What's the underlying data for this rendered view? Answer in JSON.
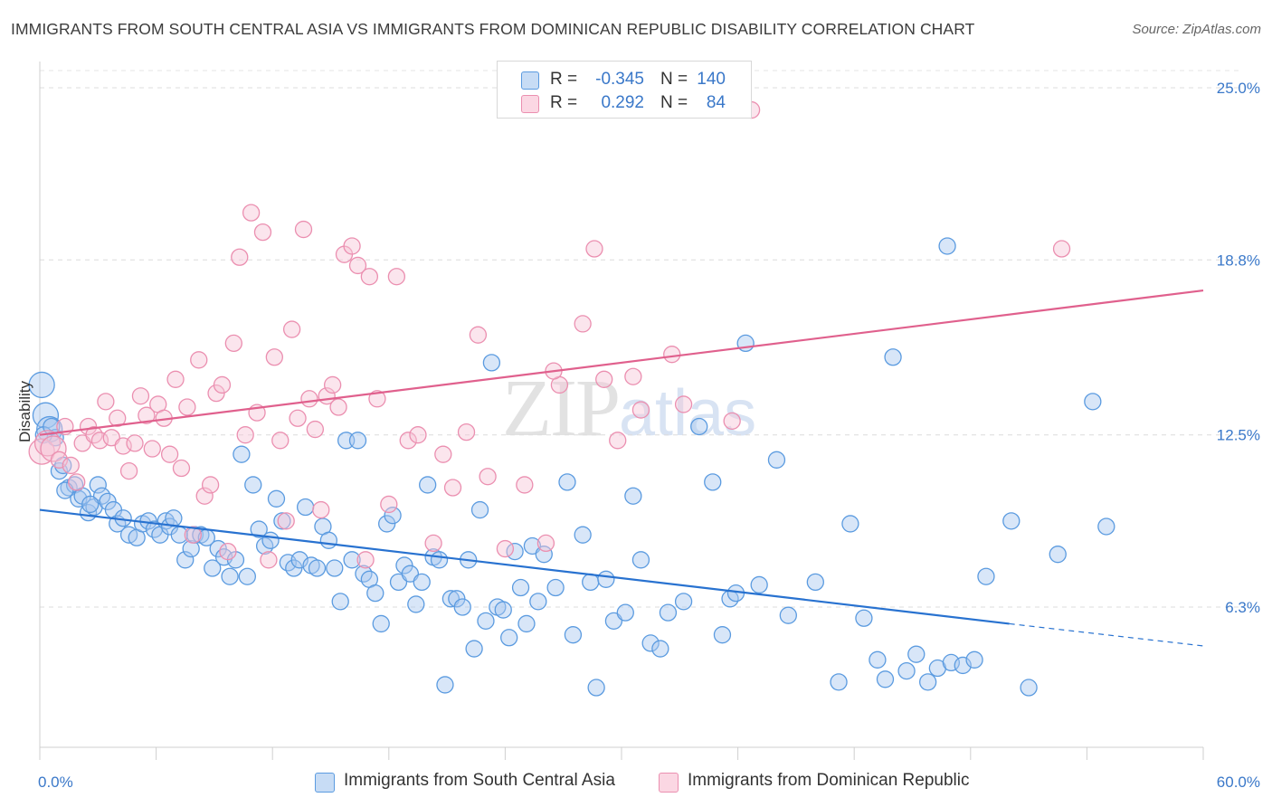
{
  "header": {
    "title": "IMMIGRANTS FROM SOUTH CENTRAL ASIA VS IMMIGRANTS FROM DOMINICAN REPUBLIC DISABILITY CORRELATION CHART",
    "source": "Source: ZipAtlas.com"
  },
  "watermark": {
    "zip": "ZIP",
    "atlas": "atlas"
  },
  "legend": {
    "rows": [
      {
        "r_label": "R =",
        "r_value": "-0.345",
        "n_label": "N =",
        "n_value": "140"
      },
      {
        "r_label": "R =",
        "r_value": "0.292",
        "n_label": "N =",
        "n_value": "84"
      }
    ]
  },
  "colors": {
    "blue": "#5b9be0",
    "blue_fill": "#a9c8f0",
    "blue_line": "#2872d0",
    "pink": "#eb8fb0",
    "pink_fill": "#f6c6d7",
    "pink_line": "#e0608d",
    "axis_label": "#3a78c9"
  },
  "chart_data": {
    "type": "scatter",
    "xlabel": "",
    "ylabel": "Disability",
    "xlim": [
      0,
      60
    ],
    "ylim": [
      0,
      26.5
    ],
    "x_ticks": [
      "0.0%",
      "60.0%"
    ],
    "y_ticks": [
      {
        "value": 6.3,
        "label": "6.3%"
      },
      {
        "value": 12.5,
        "label": "12.5%"
      },
      {
        "value": 18.8,
        "label": "18.8%"
      },
      {
        "value": 25.0,
        "label": "25.0%"
      }
    ],
    "grid": "horizontal dashed",
    "series": [
      {
        "name": "Immigrants from South Central Asia",
        "color": "blue",
        "trend": {
          "x0": 0,
          "y0": 9.8,
          "x1": 50,
          "y1": 5.7,
          "dash_to_x": 60,
          "dash_to_y": 4.9
        },
        "points": [
          [
            0.1,
            14.3
          ],
          [
            0.3,
            13.2
          ],
          [
            0.5,
            12.7
          ],
          [
            0.8,
            12.4
          ],
          [
            1.0,
            11.2
          ],
          [
            1.2,
            11.4
          ],
          [
            1.5,
            10.6
          ],
          [
            1.8,
            10.7
          ],
          [
            2.0,
            10.2
          ],
          [
            2.2,
            10.3
          ],
          [
            2.5,
            9.7
          ],
          [
            2.8,
            9.9
          ],
          [
            3.0,
            10.7
          ],
          [
            3.2,
            10.3
          ],
          [
            3.5,
            10.1
          ],
          [
            3.8,
            9.8
          ],
          [
            4.0,
            9.3
          ],
          [
            4.3,
            9.5
          ],
          [
            4.6,
            8.9
          ],
          [
            5.0,
            8.8
          ],
          [
            5.3,
            9.3
          ],
          [
            5.6,
            9.4
          ],
          [
            5.9,
            9.1
          ],
          [
            6.2,
            8.9
          ],
          [
            6.5,
            9.4
          ],
          [
            6.7,
            9.2
          ],
          [
            6.9,
            9.5
          ],
          [
            7.2,
            8.9
          ],
          [
            7.5,
            8.0
          ],
          [
            7.8,
            8.4
          ],
          [
            8.0,
            8.9
          ],
          [
            8.3,
            8.9
          ],
          [
            8.6,
            8.8
          ],
          [
            8.9,
            7.7
          ],
          [
            9.2,
            8.4
          ],
          [
            9.5,
            8.1
          ],
          [
            9.8,
            7.4
          ],
          [
            10.1,
            8.0
          ],
          [
            10.4,
            11.8
          ],
          [
            10.7,
            7.4
          ],
          [
            11.0,
            10.7
          ],
          [
            11.3,
            9.1
          ],
          [
            11.6,
            8.5
          ],
          [
            11.9,
            8.7
          ],
          [
            12.2,
            10.2
          ],
          [
            12.5,
            9.4
          ],
          [
            12.8,
            7.9
          ],
          [
            13.1,
            7.7
          ],
          [
            13.4,
            8.0
          ],
          [
            13.7,
            9.9
          ],
          [
            14.0,
            7.8
          ],
          [
            14.3,
            7.7
          ],
          [
            14.6,
            9.2
          ],
          [
            14.9,
            8.7
          ],
          [
            15.2,
            7.7
          ],
          [
            15.5,
            6.5
          ],
          [
            15.8,
            12.3
          ],
          [
            16.1,
            8.0
          ],
          [
            16.4,
            12.3
          ],
          [
            16.7,
            7.5
          ],
          [
            17.0,
            7.3
          ],
          [
            17.3,
            6.8
          ],
          [
            17.6,
            5.7
          ],
          [
            17.9,
            9.3
          ],
          [
            18.2,
            9.6
          ],
          [
            18.5,
            7.2
          ],
          [
            18.8,
            7.8
          ],
          [
            19.1,
            7.5
          ],
          [
            19.4,
            6.4
          ],
          [
            19.7,
            7.2
          ],
          [
            20.0,
            10.7
          ],
          [
            20.3,
            8.1
          ],
          [
            20.6,
            8.0
          ],
          [
            20.9,
            3.5
          ],
          [
            21.2,
            6.6
          ],
          [
            21.5,
            6.6
          ],
          [
            21.8,
            6.3
          ],
          [
            22.1,
            8.0
          ],
          [
            22.4,
            4.8
          ],
          [
            22.7,
            9.8
          ],
          [
            23.0,
            5.8
          ],
          [
            23.3,
            15.1
          ],
          [
            23.6,
            6.3
          ],
          [
            23.9,
            6.2
          ],
          [
            24.2,
            5.2
          ],
          [
            24.5,
            8.3
          ],
          [
            24.8,
            7.0
          ],
          [
            25.1,
            5.7
          ],
          [
            25.4,
            8.5
          ],
          [
            25.7,
            6.5
          ],
          [
            26.0,
            8.2
          ],
          [
            26.6,
            7.0
          ],
          [
            27.2,
            10.8
          ],
          [
            27.5,
            5.3
          ],
          [
            28.0,
            8.9
          ],
          [
            28.4,
            7.2
          ],
          [
            28.7,
            3.4
          ],
          [
            29.2,
            7.3
          ],
          [
            29.6,
            5.8
          ],
          [
            30.2,
            6.1
          ],
          [
            30.6,
            10.3
          ],
          [
            31.0,
            8.0
          ],
          [
            31.5,
            5.0
          ],
          [
            32.0,
            4.8
          ],
          [
            32.4,
            6.1
          ],
          [
            33.2,
            6.5
          ],
          [
            34.0,
            12.8
          ],
          [
            34.7,
            10.8
          ],
          [
            35.2,
            5.3
          ],
          [
            35.6,
            6.6
          ],
          [
            35.9,
            6.8
          ],
          [
            36.4,
            15.8
          ],
          [
            37.1,
            7.1
          ],
          [
            38.0,
            11.6
          ],
          [
            38.6,
            6.0
          ],
          [
            40.0,
            7.2
          ],
          [
            41.2,
            3.6
          ],
          [
            41.8,
            9.3
          ],
          [
            42.5,
            5.9
          ],
          [
            43.2,
            4.4
          ],
          [
            43.6,
            3.7
          ],
          [
            44.0,
            15.3
          ],
          [
            44.7,
            4.0
          ],
          [
            45.2,
            4.6
          ],
          [
            45.8,
            3.6
          ],
          [
            46.3,
            4.1
          ],
          [
            46.8,
            19.3
          ],
          [
            47.0,
            4.3
          ],
          [
            47.6,
            4.2
          ],
          [
            48.2,
            4.4
          ],
          [
            48.8,
            7.4
          ],
          [
            50.1,
            9.4
          ],
          [
            51.0,
            3.4
          ],
          [
            52.5,
            8.2
          ],
          [
            54.3,
            13.7
          ],
          [
            55.0,
            9.2
          ],
          [
            0.2,
            12.5
          ],
          [
            0.6,
            12.8
          ],
          [
            1.3,
            10.5
          ],
          [
            2.6,
            10.0
          ]
        ]
      },
      {
        "name": "Immigrants from Dominican Republic",
        "color": "pink",
        "trend": {
          "x0": 0,
          "y0": 12.5,
          "x1": 60,
          "y1": 17.7
        },
        "points": [
          [
            0.1,
            11.9
          ],
          [
            0.4,
            12.2
          ],
          [
            0.7,
            12.0
          ],
          [
            1.0,
            11.6
          ],
          [
            1.3,
            12.8
          ],
          [
            1.6,
            11.4
          ],
          [
            1.9,
            10.8
          ],
          [
            2.2,
            12.2
          ],
          [
            2.5,
            12.8
          ],
          [
            2.8,
            12.5
          ],
          [
            3.1,
            12.3
          ],
          [
            3.4,
            13.7
          ],
          [
            3.7,
            12.4
          ],
          [
            4.0,
            13.1
          ],
          [
            4.3,
            12.1
          ],
          [
            4.6,
            11.2
          ],
          [
            4.9,
            12.2
          ],
          [
            5.2,
            13.9
          ],
          [
            5.5,
            13.2
          ],
          [
            5.8,
            12.0
          ],
          [
            6.1,
            13.6
          ],
          [
            6.4,
            13.1
          ],
          [
            6.7,
            11.8
          ],
          [
            7.0,
            14.5
          ],
          [
            7.3,
            11.3
          ],
          [
            7.6,
            13.5
          ],
          [
            7.9,
            8.9
          ],
          [
            8.2,
            15.2
          ],
          [
            8.5,
            10.3
          ],
          [
            8.8,
            10.7
          ],
          [
            9.1,
            14.0
          ],
          [
            9.4,
            14.3
          ],
          [
            9.7,
            8.3
          ],
          [
            10.0,
            15.8
          ],
          [
            10.3,
            18.9
          ],
          [
            10.6,
            12.5
          ],
          [
            10.9,
            20.5
          ],
          [
            11.2,
            13.3
          ],
          [
            11.5,
            19.8
          ],
          [
            11.8,
            8.0
          ],
          [
            12.1,
            15.3
          ],
          [
            12.4,
            12.3
          ],
          [
            12.7,
            9.4
          ],
          [
            13.0,
            16.3
          ],
          [
            13.3,
            13.1
          ],
          [
            13.6,
            19.9
          ],
          [
            13.9,
            13.8
          ],
          [
            14.2,
            12.7
          ],
          [
            14.5,
            9.8
          ],
          [
            14.8,
            13.9
          ],
          [
            15.1,
            14.3
          ],
          [
            15.4,
            13.5
          ],
          [
            15.7,
            19.0
          ],
          [
            16.1,
            19.3
          ],
          [
            16.4,
            18.6
          ],
          [
            16.8,
            8.0
          ],
          [
            17.0,
            18.2
          ],
          [
            17.4,
            13.8
          ],
          [
            18.0,
            10.0
          ],
          [
            18.4,
            18.2
          ],
          [
            19.0,
            12.3
          ],
          [
            19.5,
            12.5
          ],
          [
            20.3,
            8.6
          ],
          [
            20.8,
            11.8
          ],
          [
            21.3,
            10.6
          ],
          [
            22.0,
            12.6
          ],
          [
            22.6,
            16.1
          ],
          [
            23.1,
            11.0
          ],
          [
            24.0,
            8.4
          ],
          [
            25.0,
            10.7
          ],
          [
            26.1,
            8.6
          ],
          [
            26.8,
            14.3
          ],
          [
            28.0,
            16.5
          ],
          [
            28.6,
            19.2
          ],
          [
            29.8,
            12.3
          ],
          [
            30.6,
            14.6
          ],
          [
            31.0,
            13.4
          ],
          [
            32.6,
            15.4
          ],
          [
            33.2,
            13.6
          ],
          [
            35.7,
            13.0
          ],
          [
            36.7,
            24.2
          ],
          [
            52.7,
            19.2
          ],
          [
            26.5,
            14.8
          ],
          [
            29.1,
            14.5
          ]
        ]
      }
    ]
  }
}
